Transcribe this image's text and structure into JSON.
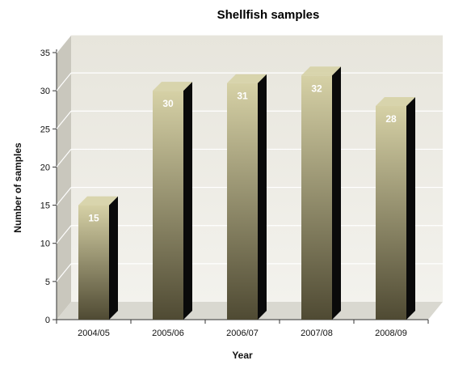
{
  "chart_data": {
    "type": "bar",
    "title": "Shellfish samples",
    "xlabel": "Year",
    "ylabel": "Number of samples",
    "categories": [
      "2004/05",
      "2005/06",
      "2006/07",
      "2007/08",
      "2008/09"
    ],
    "values": [
      15,
      30,
      31,
      32,
      28
    ],
    "ylim": [
      0,
      35
    ],
    "yticks": [
      0,
      5,
      10,
      15,
      20,
      25,
      30,
      35
    ],
    "grid": true,
    "legend": "none",
    "colors": {
      "bar_top": "#d6d1a6",
      "bar_bottom": "#4f4a33",
      "bar_side": "#0a0a0a",
      "wall": "#efeee7",
      "wall_side": "#c9c7bd",
      "floor": "#d9d8d0",
      "gridline": "#ffffff"
    }
  }
}
